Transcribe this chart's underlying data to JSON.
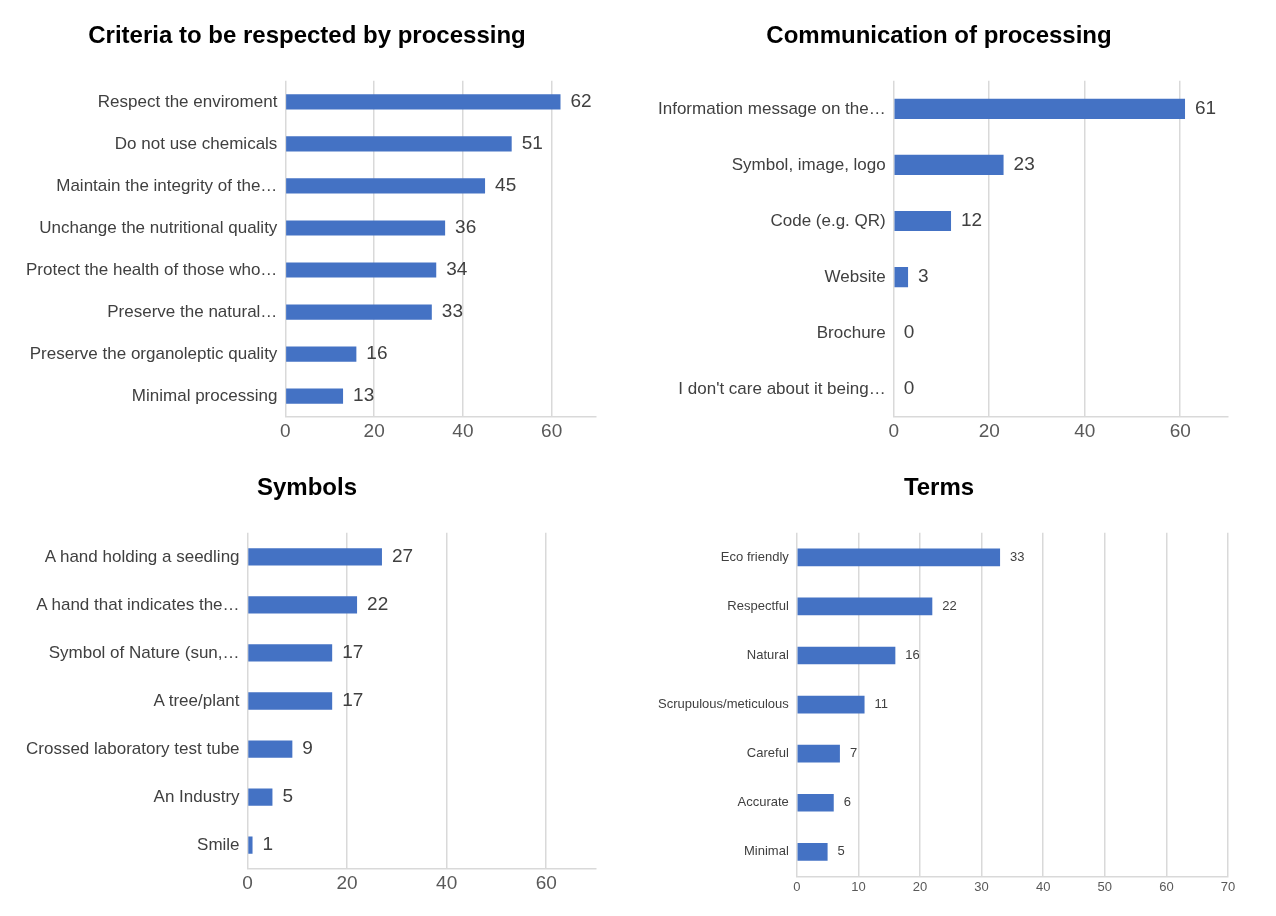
{
  "chart_data": [
    {
      "type": "bar",
      "orientation": "horizontal",
      "title": "Criteria to be respected by processing",
      "categories": [
        "Respect the enviroment",
        "Do not use chemicals",
        "Maintain the integrity of the…",
        "Unchange the nutritional quality",
        "Protect the health of those who…",
        "Preserve the natural…",
        "Preserve the organoleptic quality",
        "Minimal processing"
      ],
      "values": [
        62,
        51,
        45,
        36,
        34,
        33,
        16,
        13
      ],
      "color": "#4472c4",
      "xlim": [
        0,
        70
      ],
      "xticks": [
        0,
        20,
        40,
        60
      ],
      "grid": "x",
      "data_labels": true
    },
    {
      "type": "bar",
      "orientation": "horizontal",
      "title": "Communication of processing",
      "categories": [
        "Information message on the…",
        "Symbol, image, logo",
        "Code (e.g. QR)",
        "Website",
        "Brochure",
        "I don't care about it being…"
      ],
      "values": [
        61,
        23,
        12,
        3,
        0,
        0
      ],
      "color": "#4472c4",
      "xlim": [
        0,
        70
      ],
      "xticks": [
        0,
        20,
        40,
        60
      ],
      "grid": "x",
      "data_labels": true
    },
    {
      "type": "bar",
      "orientation": "horizontal",
      "title": "Symbols",
      "categories": [
        "A hand holding a seedling",
        "A hand that indicates the…",
        "Symbol of Nature (sun,…",
        "A tree/plant",
        "Crossed laboratory test tube",
        "An Industry",
        "Smile"
      ],
      "values": [
        27,
        22,
        17,
        17,
        9,
        5,
        1
      ],
      "color": "#4472c4",
      "xlim": [
        0,
        70
      ],
      "xticks": [
        0,
        20,
        40,
        60
      ],
      "grid": "x",
      "data_labels": true
    },
    {
      "type": "bar",
      "orientation": "horizontal",
      "title": "Terms",
      "categories": [
        "Eco friendly",
        "Respectful",
        "Natural",
        "Scrupulous/meticulous",
        "Careful",
        "Accurate",
        "Minimal"
      ],
      "values": [
        33,
        22,
        16,
        11,
        7,
        6,
        5
      ],
      "color": "#4472c4",
      "xlim": [
        0,
        70
      ],
      "xticks": [
        0,
        10,
        20,
        30,
        40,
        50,
        60,
        70
      ],
      "grid": "x",
      "data_labels": true
    }
  ]
}
